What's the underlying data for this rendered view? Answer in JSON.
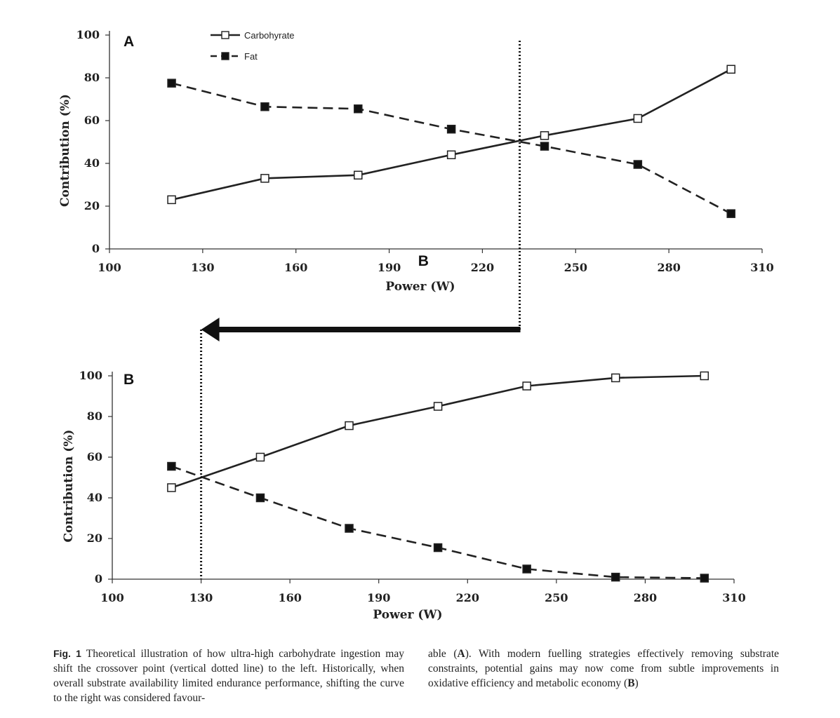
{
  "chart_data": [
    {
      "type": "line",
      "panel_label": "A",
      "x": [
        120,
        150,
        180,
        210,
        240,
        270,
        300
      ],
      "series": [
        {
          "name": "Carbohyrate",
          "style": "solid",
          "marker": "open-square",
          "values": [
            23,
            33,
            34.5,
            44,
            53,
            61,
            84
          ]
        },
        {
          "name": "Fat",
          "style": "dashed",
          "marker": "filled-square",
          "values": [
            77.5,
            66.5,
            65.5,
            56,
            48,
            39.5,
            16.5
          ]
        }
      ],
      "xlabel": "Power (W)",
      "ylabel": "Contribution (%)",
      "xlim": [
        100,
        310
      ],
      "ylim": [
        0,
        100
      ],
      "xticks": [
        "100",
        "130",
        "160",
        "190",
        "220",
        "250",
        "280",
        "310"
      ],
      "yticks": [
        "0",
        "20",
        "40",
        "60",
        "80",
        "100"
      ],
      "crossover_x": 232,
      "annotation": "B",
      "legend": "top-center"
    },
    {
      "type": "line",
      "panel_label": "B",
      "x": [
        120,
        150,
        180,
        210,
        240,
        270,
        300
      ],
      "series": [
        {
          "name": "Carbohyrate",
          "style": "solid",
          "marker": "open-square",
          "values": [
            45,
            60,
            75.5,
            85,
            95,
            99,
            100
          ]
        },
        {
          "name": "Fat",
          "style": "dashed",
          "marker": "filled-square",
          "values": [
            55.5,
            40,
            25,
            15.5,
            5,
            1,
            0.5
          ]
        }
      ],
      "xlabel": "Power (W)",
      "ylabel": "Contribution (%)",
      "xlim": [
        100,
        310
      ],
      "ylim": [
        0,
        100
      ],
      "xticks": [
        "100",
        "130",
        "160",
        "190",
        "220",
        "250",
        "280",
        "310"
      ],
      "yticks": [
        "0",
        "20",
        "40",
        "60",
        "80",
        "100"
      ],
      "crossover_x": 130
    }
  ],
  "caption": {
    "label": "Fig. 1",
    "left_text": "Theoretical illustration of how ultra-high carbohydrate ingestion may shift the crossover point (vertical dotted line) to the left. Historically, when overall substrate availability limited endurance performance, shifting the curve to the right was considered favour-",
    "right_text_1": "able (",
    "right_bold_a": "A",
    "right_text_2": "). With modern fuelling strategies effectively removing substrate constraints, potential gains may now come from subtle improvements in oxidative efficiency and metabolic economy (",
    "right_bold_b": "B",
    "right_text_3": ")"
  }
}
